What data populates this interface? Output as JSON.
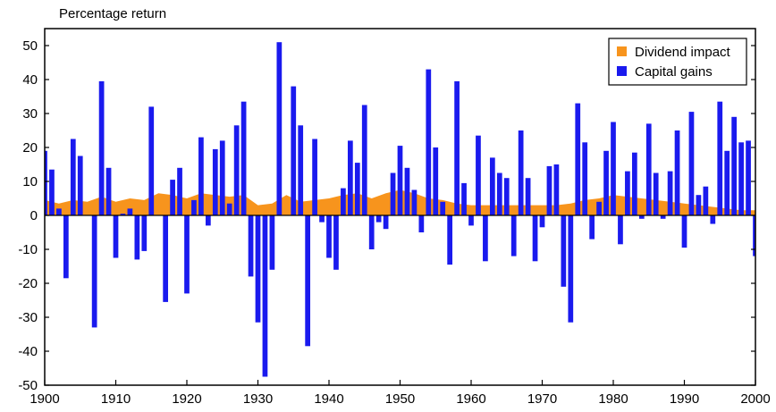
{
  "chart_data": {
    "type": "bar",
    "title": "",
    "ylabel": "Percentage return",
    "xlabel": "",
    "xlim": [
      1900,
      2000
    ],
    "ylim": [
      -50,
      55
    ],
    "x_ticks": [
      1900,
      1910,
      1920,
      1930,
      1940,
      1950,
      1960,
      1970,
      1980,
      1990,
      2000
    ],
    "y_ticks": [
      -50,
      -40,
      -30,
      -20,
      -10,
      0,
      10,
      20,
      30,
      40,
      50
    ],
    "grid": false,
    "legend_position": "top-right",
    "colors": {
      "dividend": "#f7941d",
      "capital": "#1a1aee"
    },
    "legend": [
      "Dividend impact",
      "Capital gains"
    ],
    "series": [
      {
        "name": "Capital gains",
        "type": "bar",
        "years": [
          1900,
          1901,
          1902,
          1903,
          1904,
          1905,
          1906,
          1907,
          1908,
          1909,
          1910,
          1911,
          1912,
          1913,
          1914,
          1915,
          1916,
          1917,
          1918,
          1919,
          1920,
          1921,
          1922,
          1923,
          1924,
          1925,
          1926,
          1927,
          1928,
          1929,
          1930,
          1931,
          1932,
          1933,
          1934,
          1935,
          1936,
          1937,
          1938,
          1939,
          1940,
          1941,
          1942,
          1943,
          1944,
          1945,
          1946,
          1947,
          1948,
          1949,
          1950,
          1951,
          1952,
          1953,
          1954,
          1955,
          1956,
          1957,
          1958,
          1959,
          1960,
          1961,
          1962,
          1963,
          1964,
          1965,
          1966,
          1967,
          1968,
          1969,
          1970,
          1971,
          1972,
          1973,
          1974,
          1975,
          1976,
          1977,
          1978,
          1979,
          1980,
          1981,
          1982,
          1983,
          1984,
          1985,
          1986,
          1987,
          1988,
          1989,
          1990,
          1991,
          1992,
          1993,
          1994,
          1995,
          1996,
          1997,
          1998,
          1999,
          2000
        ],
        "values": [
          19,
          13.5,
          2,
          -18.5,
          22.5,
          17.5,
          0,
          -33,
          39.5,
          14,
          -12.5,
          0.5,
          2,
          -13,
          -10.5,
          32,
          0,
          -25.5,
          10.5,
          14,
          -23,
          4.5,
          23,
          -3,
          19.5,
          22,
          3.5,
          26.5,
          33.5,
          -18,
          -31.5,
          -47.5,
          -16,
          51,
          0,
          38,
          26.5,
          -38.5,
          22.5,
          -2,
          -12.5,
          -16,
          8,
          22,
          15.5,
          32.5,
          -10,
          -2,
          -4,
          12.5,
          20.5,
          14,
          7.5,
          -5,
          43,
          20,
          4,
          -14.5,
          39.5,
          9.5,
          -3,
          23.5,
          -13.5,
          17,
          12.5,
          11,
          -12,
          25,
          11,
          -13.5,
          -3.5,
          14.5,
          15,
          -21,
          -31.5,
          33,
          21.5,
          -7,
          4,
          19,
          27.5,
          -8.5,
          13,
          18.5,
          -1,
          27,
          12.5,
          -1,
          13,
          25,
          -9.5,
          30.5,
          6,
          8.5,
          -2.5,
          33.5,
          19,
          29,
          21.5,
          22,
          -12
        ]
      },
      {
        "name": "Dividend impact",
        "type": "area",
        "years": [
          1900,
          1902,
          1904,
          1906,
          1908,
          1910,
          1912,
          1914,
          1916,
          1918,
          1920,
          1922,
          1924,
          1926,
          1928,
          1930,
          1932,
          1934,
          1936,
          1938,
          1940,
          1942,
          1944,
          1946,
          1948,
          1950,
          1952,
          1954,
          1956,
          1958,
          1960,
          1962,
          1964,
          1966,
          1968,
          1970,
          1972,
          1974,
          1976,
          1978,
          1980,
          1982,
          1984,
          1986,
          1988,
          1990,
          1992,
          1994,
          1996,
          1998,
          2000
        ],
        "values": [
          4.5,
          3.5,
          4.5,
          4,
          5.5,
          4,
          5,
          4.5,
          6.5,
          6,
          5,
          6.5,
          6,
          5.5,
          6,
          3,
          3.5,
          6,
          4,
          4.5,
          5,
          6,
          6.5,
          5,
          6.5,
          7.5,
          6.5,
          5,
          4.5,
          3.5,
          3,
          3,
          3,
          3,
          3,
          3,
          3,
          3.5,
          4.5,
          5,
          6,
          5.5,
          5,
          4.5,
          4,
          3.5,
          3,
          2.5,
          2,
          1.5,
          1.5
        ]
      }
    ]
  }
}
